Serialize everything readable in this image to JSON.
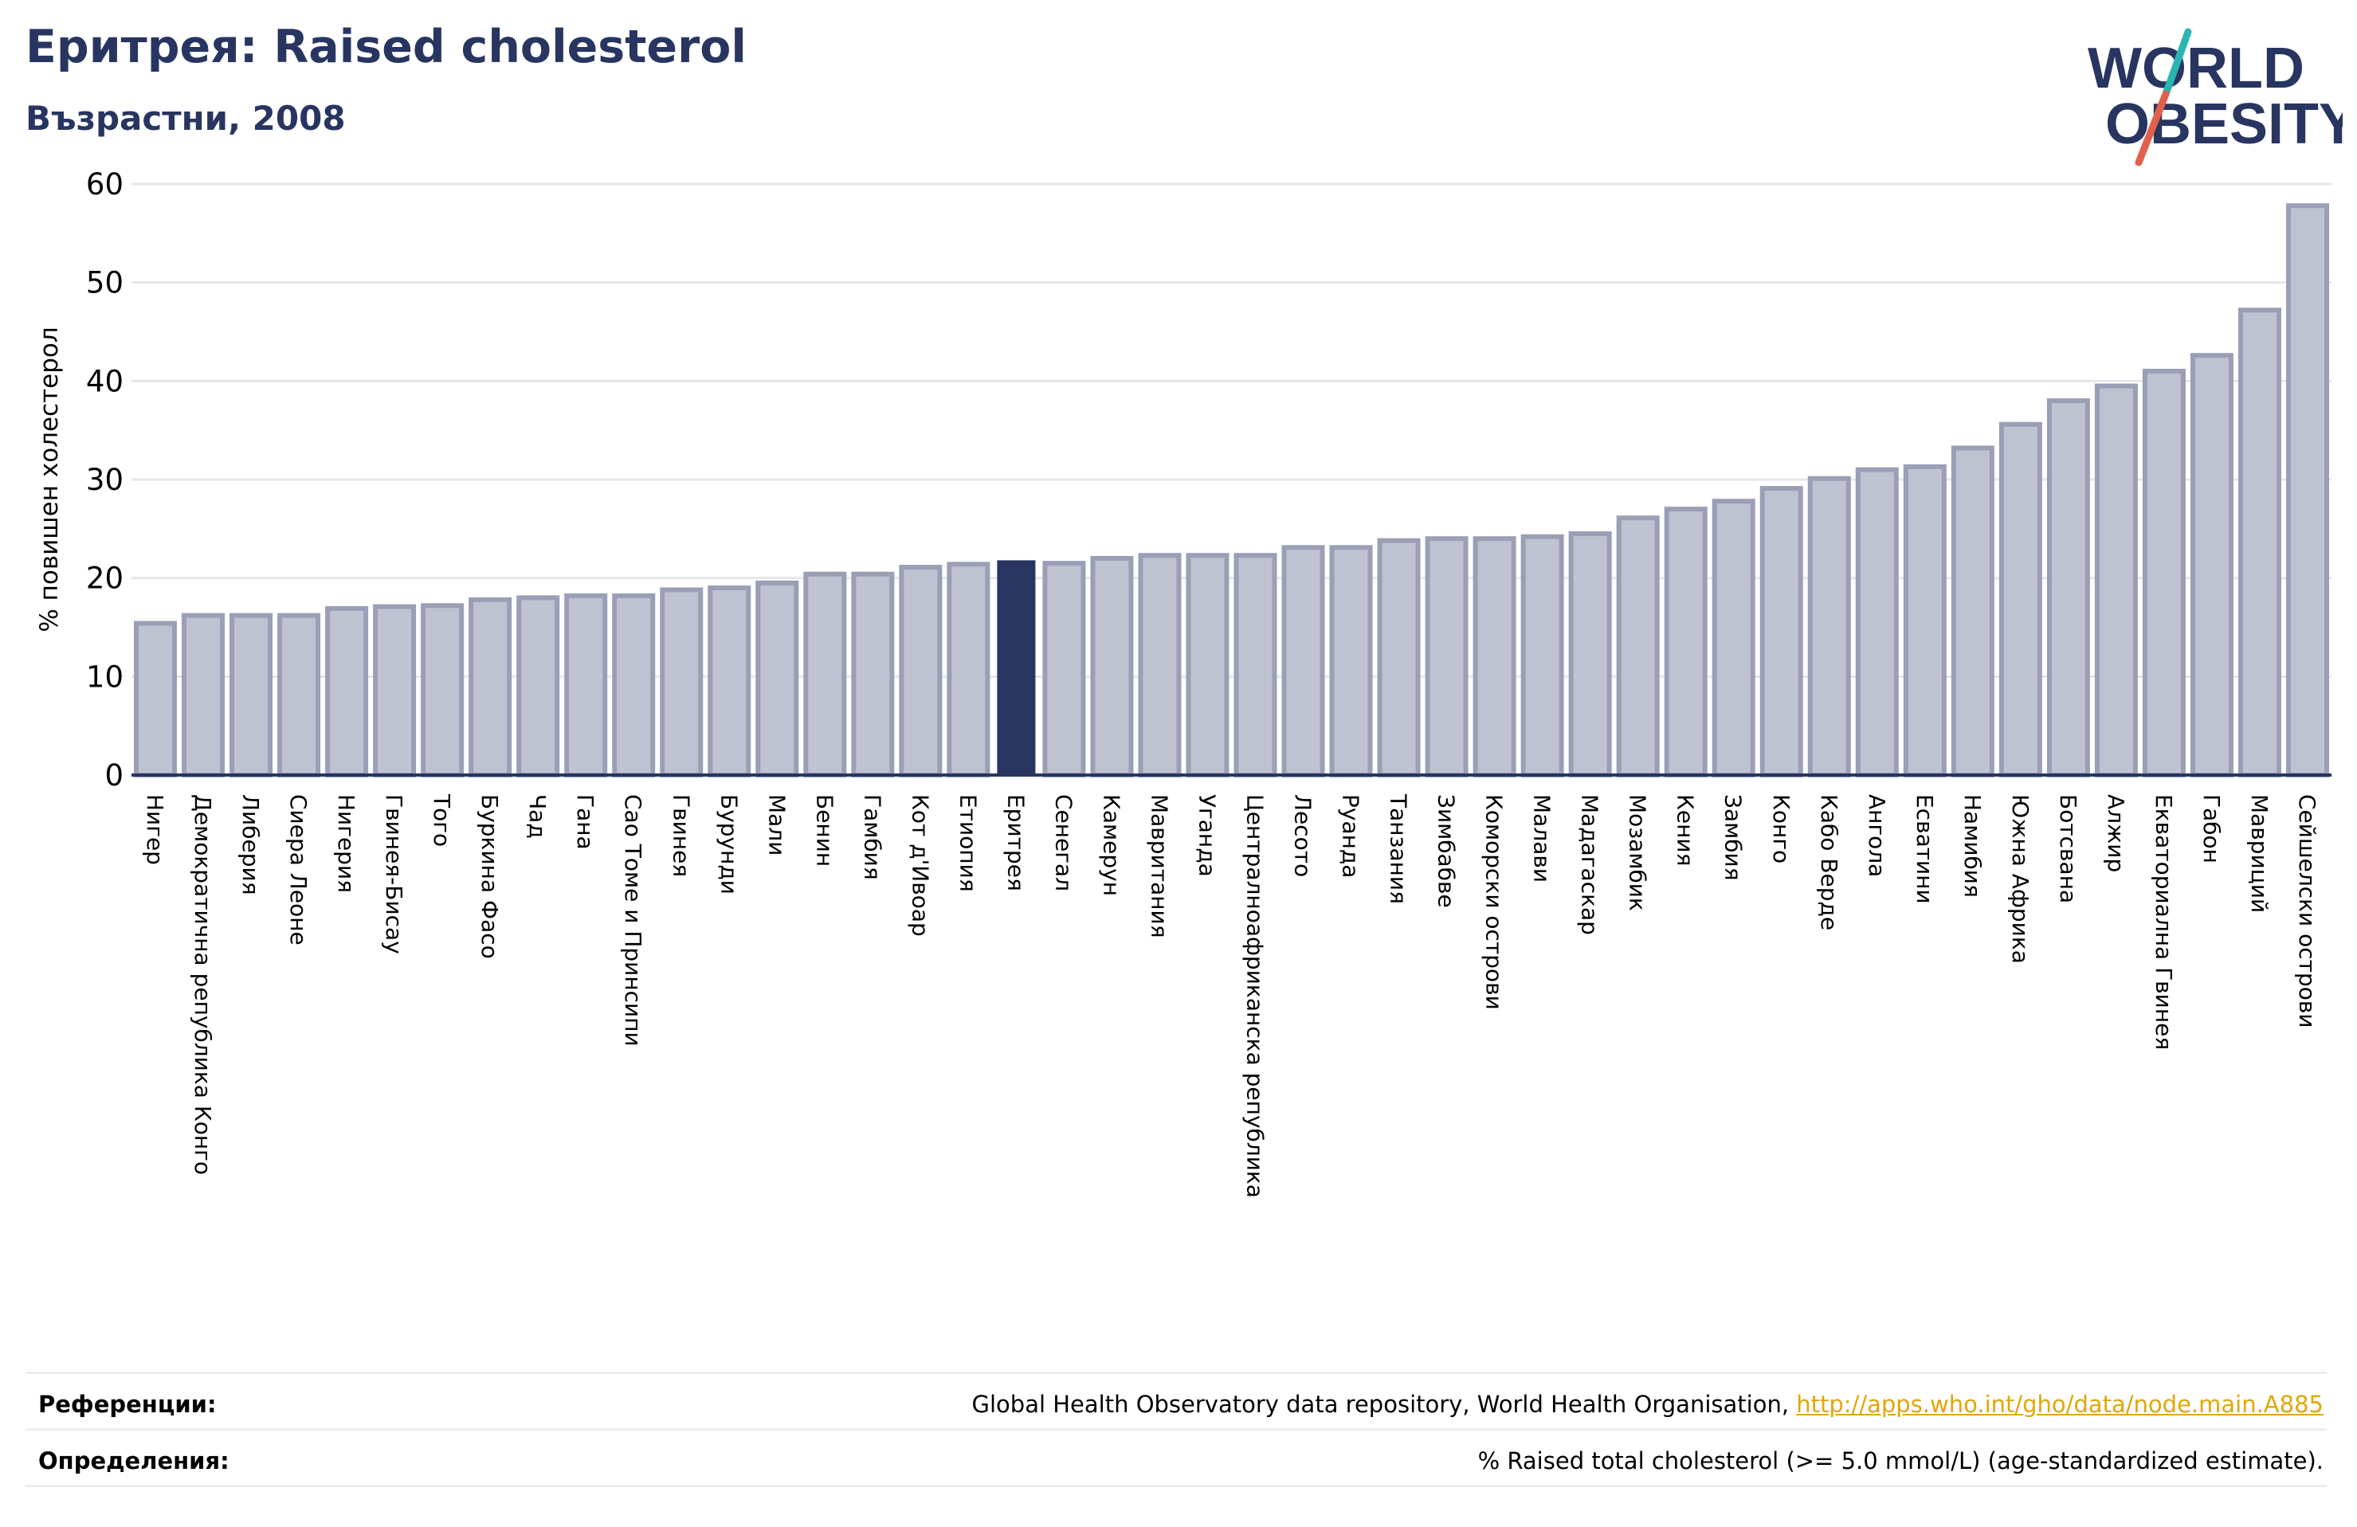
{
  "header": {
    "title": "Еритрея: Raised cholesterol",
    "subtitle": "Възрастни, 2008"
  },
  "logo": {
    "line1": "WORLD",
    "line2": "OBESITY",
    "text_color": "#283561",
    "slash_top_color": "#2bb5b0",
    "slash_bottom_color": "#e2604b"
  },
  "chart_data": {
    "type": "bar",
    "ylabel": "% повишен холестерол",
    "xlabel": "",
    "ylim": [
      0,
      60
    ],
    "yticks": [
      0,
      10,
      20,
      30,
      40,
      50,
      60
    ],
    "grid": true,
    "highlight": "Еритрея",
    "colors": {
      "bar": "#bfc2d0",
      "bar_border": "#9a9fb6",
      "highlight": "#283561",
      "grid": "#e6e7eb",
      "axis": "#283561"
    },
    "categories": [
      "Нигер",
      "Демократична република Конго",
      "Либерия",
      "Сиера Леоне",
      "Нигерия",
      "Гвинея-Бисау",
      "Того",
      "Буркина Фасо",
      "Чад",
      "Гана",
      "Сао Томе и Принсипи",
      "Гвинея",
      "Бурунди",
      "Мали",
      "Бенин",
      "Гамбия",
      "Кот д'Ивоар",
      "Етиопия",
      "Еритрея",
      "Сенегал",
      "Камерун",
      "Мавритания",
      "Уганда",
      "Централноафриканска република",
      "Лесото",
      "Руанда",
      "Танзания",
      "Зимбабве",
      "Коморски острови",
      "Малави",
      "Мадагаскар",
      "Мозамбик",
      "Кения",
      "Замбия",
      "Конго",
      "Кабо Верде",
      "Ангола",
      "Есватини",
      "Намибия",
      "Южна Африка",
      "Ботсвана",
      "Алжир",
      "Екваториална Гвинея",
      "Габон",
      "Мавриций",
      "Сейшелски острови"
    ],
    "values": [
      15.4,
      16.2,
      16.2,
      16.2,
      16.9,
      17.1,
      17.2,
      17.8,
      18.0,
      18.2,
      18.2,
      18.8,
      19.0,
      19.5,
      20.4,
      20.4,
      21.1,
      21.4,
      21.8,
      21.5,
      22.0,
      22.3,
      22.3,
      22.3,
      23.1,
      23.1,
      23.8,
      24.0,
      24.0,
      24.2,
      24.5,
      26.1,
      27.0,
      27.8,
      29.1,
      30.1,
      31.0,
      31.3,
      33.2,
      35.6,
      38.0,
      39.5,
      41.0,
      42.6,
      47.2,
      57.8
    ]
  },
  "footer": {
    "references_label": "Референции:",
    "references_text": "Global Health Observatory data repository, World Health Organisation, ",
    "references_link": "http://apps.who.int/gho/data/node.main.A885",
    "definitions_label": "Определения:",
    "definitions_text": "% Raised total cholesterol (>= 5.0 mmol/L) (age-standardized estimate)."
  }
}
